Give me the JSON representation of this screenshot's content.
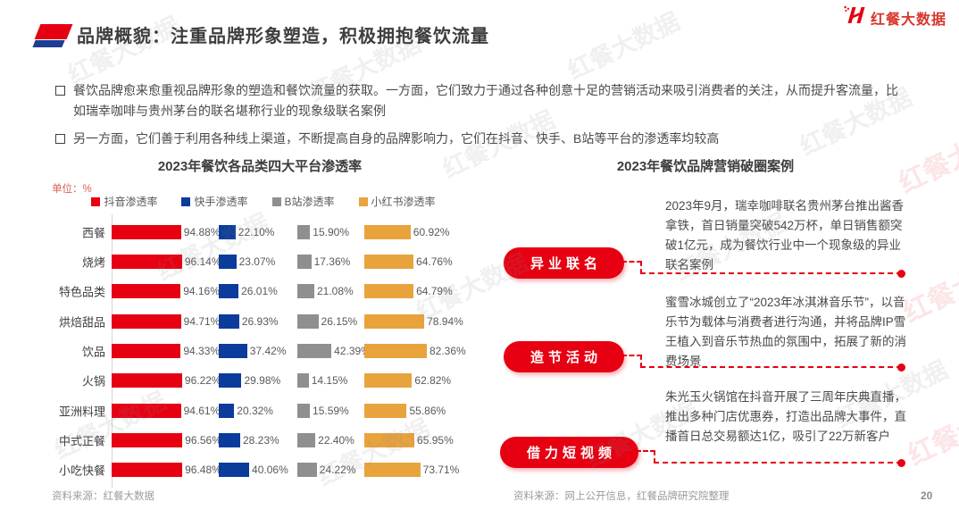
{
  "page": {
    "title": "品牌概貌：注重品牌形象塑造，积极拥抱餐饮流量",
    "page_number": "20",
    "watermark_text": "红餐大数据"
  },
  "logo": {
    "text": "红餐大数据"
  },
  "bullets": [
    "餐饮品牌愈来愈重视品牌形象的塑造和餐饮流量的获取。一方面，它们致力于通过各种创意十足的营销活动来吸引消费者的关注，从而提升客流量，比如瑞幸咖啡与贵州茅台的联名堪称行业的现象级联名案例",
    "另一方面，它们善于利用各种线上渠道，不断提高自身的品牌影响力，它们在抖音、快手、B站等平台的渗透率均较高"
  ],
  "chart_data": {
    "type": "bar",
    "orientation": "horizontal",
    "title": "2023年餐饮各品类四大平台渗透率",
    "unit_label": "单位：%",
    "value_suffix": "%",
    "legend_position": "top",
    "xlim": [
      0,
      100
    ],
    "source": "资料来源：红餐大数据",
    "categories": [
      "西餐",
      "烧烤",
      "特色品类",
      "烘焙甜品",
      "饮品",
      "火锅",
      "亚洲料理",
      "中式正餐",
      "小吃快餐"
    ],
    "series": [
      {
        "name": "抖音渗透率",
        "color": "#E60012",
        "values": [
          94.88,
          96.14,
          94.16,
          94.71,
          94.33,
          96.22,
          94.61,
          96.56,
          96.48
        ]
      },
      {
        "name": "快手渗透率",
        "color": "#0B3B9B",
        "values": [
          22.1,
          23.07,
          26.01,
          26.93,
          37.42,
          29.98,
          20.32,
          28.23,
          40.06
        ]
      },
      {
        "name": "B站渗透率",
        "color": "#8F8F8F",
        "values": [
          15.9,
          17.36,
          21.08,
          26.15,
          42.39,
          14.15,
          15.59,
          22.4,
          24.22
        ]
      },
      {
        "name": "小红书渗透率",
        "color": "#E8A33D",
        "values": [
          60.92,
          64.76,
          64.79,
          78.94,
          82.36,
          62.82,
          55.86,
          65.95,
          73.71
        ]
      }
    ]
  },
  "right_panel": {
    "title": "2023年餐饮品牌营销破圈案例",
    "cases": [
      {
        "label": "异业联名",
        "text": "2023年9月，瑞幸咖啡联名贵州茅台推出酱香拿铁，首日销量突破542万杯，单日销售额突破1亿元，成为餐饮行业中一个现象级的异业联名案例"
      },
      {
        "label": "造节活动",
        "text": "蜜雪冰城创立了“2023年冰淇淋音乐节”，以音乐节为载体与消费者进行沟通，并将品牌IP雪王植入到音乐节热血的氛围中，拓展了新的消费场景"
      },
      {
        "label": "借力短视频",
        "text": "朱光玉火锅馆在抖音开展了三周年庆典直播，推出多种门店优惠券，打造出品牌大事件，直播首日总交易额达1亿，吸引了22万新客户"
      }
    ],
    "source": "资料来源：网上公开信息，红餐品牌研究院整理"
  }
}
